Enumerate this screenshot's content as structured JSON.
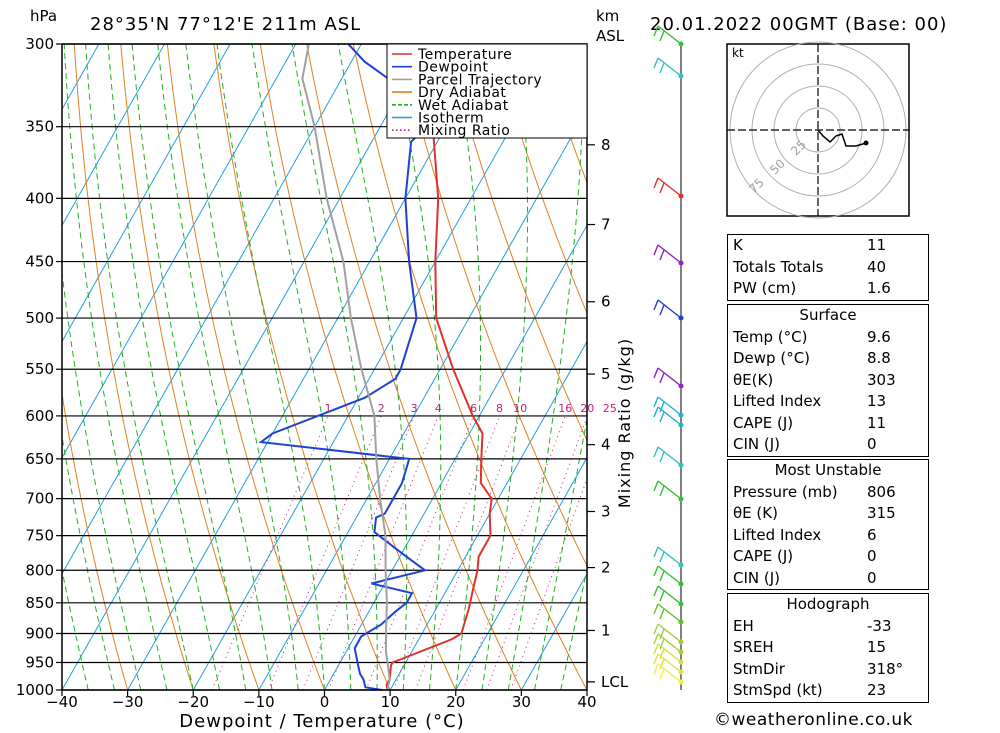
{
  "header": {
    "pressure_unit": "hPa",
    "location": "28°35'N 77°12'E 211m ASL",
    "km_label": "km",
    "asl_label": "ASL",
    "datetime": "20.01.2022 00GMT (Base: 00)"
  },
  "legend": [
    {
      "name": "Temperature",
      "color": "#e03030",
      "style": "solid"
    },
    {
      "name": "Dewpoint",
      "color": "#2040d0",
      "style": "solid"
    },
    {
      "name": "Parcel Trajectory",
      "color": "#a0a0a0",
      "style": "solid"
    },
    {
      "name": "Dry Adiabat",
      "color": "#e08020",
      "style": "solid"
    },
    {
      "name": "Wet Adiabat",
      "color": "#20b020",
      "style": "dashed"
    },
    {
      "name": "Isotherm",
      "color": "#20a0e0",
      "style": "solid"
    },
    {
      "name": "Mixing Ratio",
      "color": "#c02080",
      "style": "dotted"
    }
  ],
  "chart_data": {
    "type": "line",
    "subtype": "skew-t log-p",
    "xlabel": "Dewpoint / Temperature (°C)",
    "ylabel": "hPa",
    "right_label": "Mixing Ratio (g/kg)",
    "x_ticks": [
      -40,
      -30,
      -20,
      -10,
      0,
      10,
      20,
      30,
      40
    ],
    "pressure_levels": [
      300,
      350,
      400,
      450,
      500,
      550,
      600,
      650,
      700,
      750,
      800,
      850,
      900,
      950,
      1000
    ],
    "xlim": [
      -40,
      40
    ],
    "ylim": [
      1000,
      300
    ],
    "km_ticks": [
      {
        "label": "8",
        "p": 362
      },
      {
        "label": "7",
        "p": 420
      },
      {
        "label": "6",
        "p": 485
      },
      {
        "label": "5",
        "p": 555
      },
      {
        "label": "4",
        "p": 633
      },
      {
        "label": "3",
        "p": 717
      },
      {
        "label": "2",
        "p": 796
      },
      {
        "label": "1",
        "p": 895
      },
      {
        "label": "LCL",
        "p": 985
      }
    ],
    "mixing_ratio_labels": [
      "1",
      "2",
      "3",
      "4",
      "6",
      "8",
      "10",
      "16",
      "20",
      "25"
    ],
    "mixing_ratio_values": [
      1,
      2,
      3,
      4,
      6,
      8,
      10,
      16,
      20,
      25
    ],
    "series": [
      {
        "name": "Temperature",
        "color": "#e03030",
        "points": [
          [
            9.6,
            1000
          ],
          [
            9,
            990
          ],
          [
            9,
            980
          ],
          [
            8,
            955
          ],
          [
            8,
            950
          ],
          [
            15,
            910
          ],
          [
            16,
            900
          ],
          [
            15,
            860
          ],
          [
            14,
            830
          ],
          [
            13,
            800
          ],
          [
            12,
            780
          ],
          [
            12,
            750
          ],
          [
            10,
            720
          ],
          [
            9,
            700
          ],
          [
            6,
            680
          ],
          [
            4,
            650
          ],
          [
            2,
            620
          ],
          [
            -1,
            600
          ],
          [
            -8,
            550
          ],
          [
            -15,
            500
          ],
          [
            -20,
            450
          ],
          [
            -25,
            400
          ],
          [
            -32,
            350
          ],
          [
            -29,
            330
          ],
          [
            -24,
            310
          ],
          [
            -22,
            300
          ]
        ]
      },
      {
        "name": "Dewpoint",
        "color": "#2040d0",
        "points": [
          [
            8.8,
            1000
          ],
          [
            6,
            995
          ],
          [
            5,
            980
          ],
          [
            4,
            970
          ],
          [
            3,
            955
          ],
          [
            2,
            940
          ],
          [
            1,
            925
          ],
          [
            1,
            905
          ],
          [
            3,
            885
          ],
          [
            4,
            865
          ],
          [
            5,
            850
          ],
          [
            5,
            835
          ],
          [
            -2,
            820
          ],
          [
            5,
            800
          ],
          [
            0,
            775
          ],
          [
            -6,
            745
          ],
          [
            -7,
            725
          ],
          [
            -6,
            720
          ],
          [
            -6,
            700
          ],
          [
            -6,
            680
          ],
          [
            -7,
            650
          ],
          [
            -31,
            630
          ],
          [
            -30,
            620
          ],
          [
            -19,
            580
          ],
          [
            -16,
            560
          ],
          [
            -16,
            550
          ],
          [
            -18,
            500
          ],
          [
            -24,
            450
          ],
          [
            -30,
            400
          ],
          [
            -34,
            360
          ],
          [
            -33,
            350
          ],
          [
            -38,
            330
          ],
          [
            -48,
            310
          ],
          [
            -52,
            300
          ]
        ]
      },
      {
        "name": "Parcel Trajectory",
        "color": "#a0a0a0",
        "points": [
          [
            9.6,
            1000
          ],
          [
            9,
            980
          ],
          [
            6,
            930
          ],
          [
            4,
            890
          ],
          [
            2,
            850
          ],
          [
            -1,
            800
          ],
          [
            -4,
            750
          ],
          [
            -8,
            700
          ],
          [
            -12,
            650
          ],
          [
            -16,
            600
          ],
          [
            -22,
            550
          ],
          [
            -28,
            500
          ],
          [
            -34,
            450
          ],
          [
            -42,
            400
          ],
          [
            -50,
            350
          ],
          [
            -56,
            320
          ],
          [
            -58,
            300
          ]
        ]
      }
    ]
  },
  "hodograph": {
    "unit_label": "kt",
    "ring_labels": [
      "25",
      "50",
      "75"
    ]
  },
  "indices_table": {
    "rows": [
      {
        "label": "K",
        "value": "11"
      },
      {
        "label": "Totals Totals",
        "value": "40"
      },
      {
        "label": "PW (cm)",
        "value": "1.6"
      }
    ]
  },
  "surface_table": {
    "title": "Surface",
    "rows": [
      {
        "label": "Temp (°C)",
        "value": "9.6"
      },
      {
        "label": "Dewp (°C)",
        "value": "8.8"
      },
      {
        "label": "θE(K)",
        "value": "303"
      },
      {
        "label": "Lifted Index",
        "value": "13"
      },
      {
        "label": "CAPE (J)",
        "value": "11"
      },
      {
        "label": "CIN (J)",
        "value": "0"
      }
    ]
  },
  "unstable_table": {
    "title": "Most Unstable",
    "rows": [
      {
        "label": "Pressure (mb)",
        "value": "806"
      },
      {
        "label": "θE (K)",
        "value": "315"
      },
      {
        "label": "Lifted Index",
        "value": "6"
      },
      {
        "label": "CAPE (J)",
        "value": "0"
      },
      {
        "label": "CIN (J)",
        "value": "0"
      }
    ]
  },
  "hodograph_table": {
    "title": "Hodograph",
    "rows": [
      {
        "label": "EH",
        "value": "-33"
      },
      {
        "label": "SREH",
        "value": "15"
      },
      {
        "label": "StmDir",
        "value": "318°"
      },
      {
        "label": "StmSpd (kt)",
        "value": "23"
      }
    ]
  },
  "credit": "©weatheronline.co.uk"
}
